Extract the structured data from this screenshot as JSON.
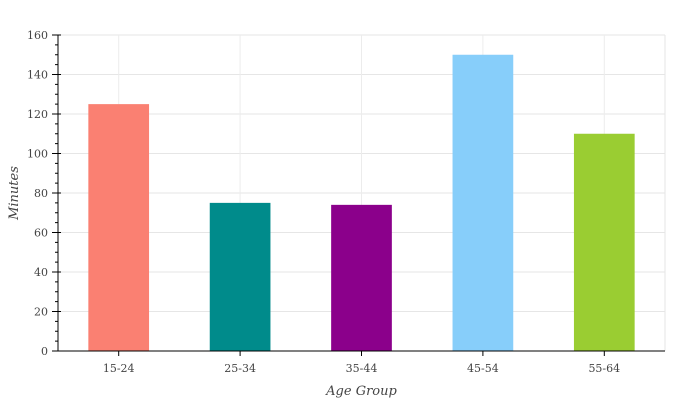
{
  "chart_data": {
    "type": "bar",
    "categories": [
      "15-24",
      "25-34",
      "35-44",
      "45-54",
      "55-64"
    ],
    "values": [
      125,
      75,
      74,
      150,
      110
    ],
    "colors": [
      "#FA8072",
      "#008B8B",
      "#8B008B",
      "#87CEFA",
      "#9ACD32"
    ],
    "xlabel": "Age Group",
    "ylabel": "Minutes",
    "ylim": [
      0,
      160
    ],
    "yticks": [
      0,
      20,
      40,
      60,
      80,
      100,
      120,
      140,
      160
    ],
    "ytick_labels": [
      "0",
      "20",
      "40",
      "60",
      "80",
      "100",
      "120",
      "140",
      "160"
    ],
    "grid": true,
    "legend": "none"
  }
}
